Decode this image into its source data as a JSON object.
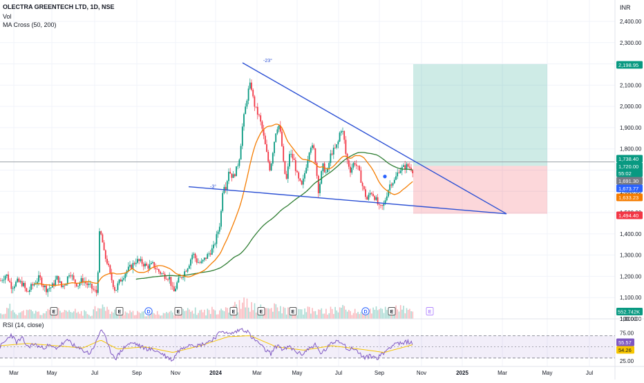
{
  "header": {
    "symbol_line": "OLECTRA GREENTECH LTD, 1D, NSE",
    "vol_label": "Vol",
    "ma_label": "MA Cross (50, 200)",
    "currency": "INR"
  },
  "rsi_label": "RSI (14, close)",
  "chart_data": {
    "type": "candlestick",
    "symbol": "OLECTRA GREENTECH LTD",
    "interval": "1D",
    "exchange": "NSE",
    "currency": "INR",
    "price_axis": {
      "ticks": [
        "2,400.00",
        "2,300.00",
        "2,200.00",
        "2,100.00",
        "2,000.00",
        "1,900.00",
        "1,800.00",
        "1,700.00",
        "1,600.00",
        "1,500.00",
        "1,400.00",
        "1,300.00",
        "1,200.00",
        "1,100.00",
        "1,000.00"
      ],
      "ylim": [
        1000,
        2400
      ]
    },
    "time_axis": {
      "labels": [
        "Mar",
        "May",
        "Jul",
        "Sep",
        "Nov",
        "2024",
        "Mar",
        "May",
        "Jul",
        "Sep",
        "Nov",
        "2025",
        "Mar",
        "May",
        "Jul"
      ],
      "bold_labels": [
        "2024",
        "2025"
      ]
    },
    "price_badges": [
      {
        "label": "2,198.95",
        "color": "#089981"
      },
      {
        "label": "1,738.40",
        "color": "#089981"
      },
      {
        "label": "1,720.00",
        "color": "#089981"
      },
      {
        "label": "55:02",
        "color": "#089981"
      },
      {
        "label": "1,691.30",
        "color": "#787b86"
      },
      {
        "label": "1,673.77",
        "color": "#2962ff"
      },
      {
        "label": "1,633.23",
        "color": "#f57c00"
      },
      {
        "label": "1,494.40",
        "color": "#f23645"
      }
    ],
    "volume_badge": {
      "label": "552.742K",
      "color": "#089981"
    },
    "rsi_axis": {
      "ticks": [
        "100.00",
        "75.00",
        "50.00",
        "25.00"
      ],
      "ylim": [
        15,
        100
      ]
    },
    "rsi_badges": [
      {
        "label": "55.57",
        "color": "#7e57c2"
      },
      {
        "label": "54.26",
        "color": "#f7c600"
      }
    ],
    "trendline_annotations": [
      "-23°",
      "-3°"
    ],
    "event_markers": [
      "E",
      "E",
      "D",
      "E",
      "E",
      "E",
      "E",
      "D",
      "E"
    ],
    "position": {
      "entry": 1720.0,
      "target": 2198.95,
      "stop": 1494.4
    },
    "moving_averages": [
      {
        "period": 50,
        "color": "#f57c00"
      },
      {
        "period": 200,
        "color": "#2e7d32"
      }
    ],
    "series_path": [
      [
        0,
        1180
      ],
      [
        8,
        1210
      ],
      [
        16,
        1150
      ],
      [
        24,
        1175
      ],
      [
        32,
        1165
      ],
      [
        38,
        1120
      ],
      [
        44,
        1150
      ],
      [
        50,
        1170
      ],
      [
        56,
        1195
      ],
      [
        61,
        1160
      ],
      [
        66,
        1140
      ],
      [
        74,
        1150
      ],
      [
        82,
        1195
      ],
      [
        88,
        1150
      ],
      [
        94,
        1170
      ],
      [
        100,
        1225
      ],
      [
        106,
        1175
      ],
      [
        112,
        1160
      ],
      [
        118,
        1185
      ],
      [
        124,
        1165
      ],
      [
        130,
        1150
      ],
      [
        136,
        1130
      ],
      [
        140,
        1120
      ],
      [
        142,
        1400
      ],
      [
        146,
        1390
      ],
      [
        150,
        1300
      ],
      [
        155,
        1260
      ],
      [
        158,
        1210
      ],
      [
        162,
        1170
      ],
      [
        166,
        1130
      ],
      [
        170,
        1165
      ],
      [
        176,
        1195
      ],
      [
        182,
        1225
      ],
      [
        190,
        1250
      ],
      [
        196,
        1275
      ],
      [
        204,
        1265
      ],
      [
        212,
        1245
      ],
      [
        220,
        1255
      ],
      [
        228,
        1225
      ],
      [
        236,
        1205
      ],
      [
        244,
        1195
      ],
      [
        250,
        1120
      ],
      [
        256,
        1175
      ],
      [
        264,
        1210
      ],
      [
        272,
        1255
      ],
      [
        278,
        1310
      ],
      [
        284,
        1270
      ],
      [
        290,
        1260
      ],
      [
        296,
        1285
      ],
      [
        302,
        1310
      ],
      [
        308,
        1335
      ],
      [
        314,
        1405
      ],
      [
        318,
        1460
      ],
      [
        322,
        1640
      ],
      [
        326,
        1620
      ],
      [
        330,
        1700
      ],
      [
        336,
        1665
      ],
      [
        342,
        1710
      ],
      [
        346,
        1770
      ],
      [
        350,
        1910
      ],
      [
        354,
        1990
      ],
      [
        358,
        2070
      ],
      [
        362,
        2110
      ],
      [
        366,
        2020
      ],
      [
        370,
        1980
      ],
      [
        374,
        1950
      ],
      [
        378,
        1900
      ],
      [
        382,
        1830
      ],
      [
        386,
        1760
      ],
      [
        390,
        1700
      ],
      [
        394,
        1795
      ],
      [
        398,
        1880
      ],
      [
        402,
        1920
      ],
      [
        406,
        1850
      ],
      [
        410,
        1700
      ],
      [
        414,
        1650
      ],
      [
        418,
        1780
      ],
      [
        424,
        1750
      ],
      [
        430,
        1660
      ],
      [
        436,
        1620
      ],
      [
        442,
        1720
      ],
      [
        448,
        1820
      ],
      [
        454,
        1790
      ],
      [
        460,
        1600
      ],
      [
        466,
        1720
      ],
      [
        472,
        1680
      ],
      [
        478,
        1780
      ],
      [
        484,
        1800
      ],
      [
        488,
        1825
      ],
      [
        492,
        1900
      ],
      [
        496,
        1870
      ],
      [
        500,
        1760
      ],
      [
        506,
        1700
      ],
      [
        512,
        1740
      ],
      [
        518,
        1700
      ],
      [
        524,
        1620
      ],
      [
        530,
        1560
      ],
      [
        536,
        1600
      ],
      [
        542,
        1570
      ],
      [
        548,
        1520
      ],
      [
        554,
        1530
      ],
      [
        558,
        1580
      ],
      [
        564,
        1640
      ],
      [
        570,
        1650
      ],
      [
        576,
        1700
      ],
      [
        582,
        1710
      ],
      [
        588,
        1720
      ],
      [
        594,
        1710
      ],
      [
        598,
        1691
      ]
    ],
    "volume_profile": [
      [
        0,
        8
      ],
      [
        14,
        18
      ],
      [
        28,
        10
      ],
      [
        44,
        12
      ],
      [
        60,
        9
      ],
      [
        76,
        14
      ],
      [
        92,
        10
      ],
      [
        110,
        12
      ],
      [
        130,
        8
      ],
      [
        141,
        24
      ],
      [
        144,
        30
      ],
      [
        150,
        16
      ],
      [
        160,
        12
      ],
      [
        176,
        11
      ],
      [
        196,
        9
      ],
      [
        216,
        8
      ],
      [
        236,
        10
      ],
      [
        256,
        11
      ],
      [
        276,
        13
      ],
      [
        296,
        12
      ],
      [
        316,
        16
      ],
      [
        322,
        22
      ],
      [
        330,
        18
      ],
      [
        346,
        22
      ],
      [
        356,
        26
      ],
      [
        366,
        18
      ],
      [
        382,
        16
      ],
      [
        398,
        18
      ],
      [
        414,
        14
      ],
      [
        430,
        12
      ],
      [
        446,
        14
      ],
      [
        462,
        12
      ],
      [
        480,
        14
      ],
      [
        494,
        18
      ],
      [
        510,
        11
      ],
      [
        526,
        12
      ],
      [
        540,
        14
      ],
      [
        556,
        16
      ],
      [
        572,
        18
      ],
      [
        588,
        14
      ],
      [
        598,
        10
      ]
    ],
    "rsi_path": [
      [
        0,
        50
      ],
      [
        8,
        60
      ],
      [
        16,
        72
      ],
      [
        24,
        58
      ],
      [
        32,
        65
      ],
      [
        40,
        50
      ],
      [
        50,
        55
      ],
      [
        60,
        48
      ],
      [
        70,
        52
      ],
      [
        80,
        47
      ],
      [
        90,
        55
      ],
      [
        100,
        62
      ],
      [
        110,
        48
      ],
      [
        120,
        44
      ],
      [
        130,
        38
      ],
      [
        140,
        60
      ],
      [
        146,
        82
      ],
      [
        150,
        76
      ],
      [
        156,
        52
      ],
      [
        162,
        38
      ],
      [
        168,
        30
      ],
      [
        176,
        44
      ],
      [
        184,
        54
      ],
      [
        194,
        57
      ],
      [
        204,
        50
      ],
      [
        214,
        46
      ],
      [
        224,
        44
      ],
      [
        234,
        38
      ],
      [
        244,
        30
      ],
      [
        250,
        26
      ],
      [
        256,
        40
      ],
      [
        266,
        50
      ],
      [
        276,
        56
      ],
      [
        286,
        52
      ],
      [
        296,
        56
      ],
      [
        306,
        62
      ],
      [
        316,
        72
      ],
      [
        322,
        80
      ],
      [
        330,
        72
      ],
      [
        340,
        76
      ],
      [
        350,
        82
      ],
      [
        358,
        78
      ],
      [
        366,
        64
      ],
      [
        374,
        58
      ],
      [
        382,
        46
      ],
      [
        392,
        38
      ],
      [
        402,
        54
      ],
      [
        410,
        44
      ],
      [
        418,
        50
      ],
      [
        428,
        42
      ],
      [
        436,
        36
      ],
      [
        446,
        46
      ],
      [
        456,
        54
      ],
      [
        464,
        38
      ],
      [
        472,
        46
      ],
      [
        480,
        56
      ],
      [
        488,
        62
      ],
      [
        496,
        58
      ],
      [
        504,
        44
      ],
      [
        512,
        48
      ],
      [
        520,
        38
      ],
      [
        528,
        30
      ],
      [
        536,
        34
      ],
      [
        546,
        30
      ],
      [
        556,
        40
      ],
      [
        566,
        52
      ],
      [
        574,
        58
      ],
      [
        582,
        54
      ],
      [
        590,
        60
      ],
      [
        598,
        55
      ]
    ],
    "rsi_ma_path": [
      [
        0,
        52
      ],
      [
        40,
        56
      ],
      [
        80,
        52
      ],
      [
        120,
        48
      ],
      [
        146,
        62
      ],
      [
        170,
        46
      ],
      [
        210,
        50
      ],
      [
        250,
        40
      ],
      [
        290,
        52
      ],
      [
        330,
        68
      ],
      [
        362,
        70
      ],
      [
        400,
        50
      ],
      [
        440,
        44
      ],
      [
        480,
        52
      ],
      [
        520,
        46
      ],
      [
        556,
        40
      ],
      [
        598,
        54
      ]
    ]
  }
}
